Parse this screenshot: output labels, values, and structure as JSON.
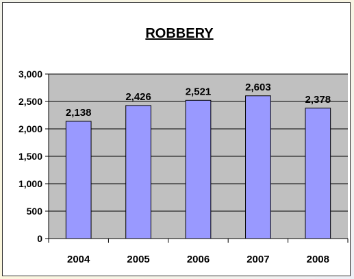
{
  "chart_data": {
    "type": "bar",
    "title": "ROBBERY",
    "categories": [
      "2004",
      "2005",
      "2006",
      "2007",
      "2008"
    ],
    "values": [
      2138,
      2426,
      2521,
      2603,
      2378
    ],
    "value_labels": [
      "2,138",
      "2,426",
      "2,521",
      "2,603",
      "2,378"
    ],
    "yticks": [
      0,
      500,
      1000,
      1500,
      2000,
      2500,
      3000
    ],
    "ytick_labels": [
      "0",
      "500",
      "1,000",
      "1,500",
      "2,000",
      "2,500",
      "3,000"
    ],
    "ylim": [
      0,
      3000
    ],
    "xlabel": "",
    "ylabel": "",
    "grid": true,
    "legend": false,
    "colors": {
      "bar": "#9999ff",
      "plot_area": "#c0c0c0",
      "grid": "#000000",
      "text": "#000000"
    }
  }
}
